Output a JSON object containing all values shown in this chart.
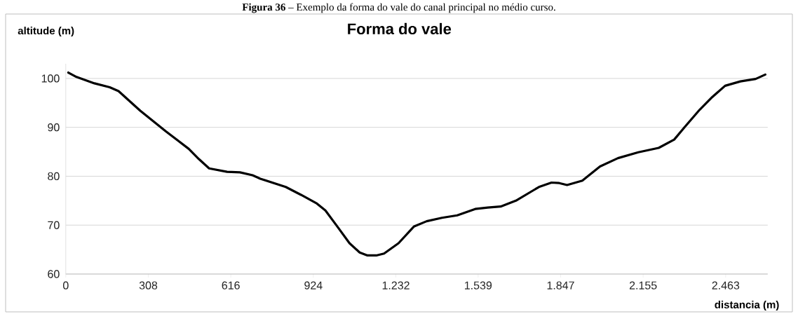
{
  "chart_data": {
    "type": "line",
    "title": "Forma do vale",
    "xlabel": "distancia (m)",
    "ylabel": "altitude (m)",
    "annotations": [
      "**Figura 36** – Exemplo da forma do vale do canal principal no médio curso."
    ],
    "x": [
      9.5,
      40,
      107,
      164,
      197,
      278,
      373,
      459,
      497,
      535,
      602,
      650,
      697,
      726,
      821,
      878,
      935,
      969,
      1011,
      1059,
      1097,
      1126,
      1159,
      1188,
      1242,
      1299,
      1347,
      1404,
      1461,
      1528,
      1575,
      1623,
      1680,
      1766,
      1813,
      1842,
      1871,
      1928,
      1994,
      2061,
      2137,
      2213,
      2271,
      2309,
      2366,
      2413,
      2461,
      2518,
      2575,
      2611
    ],
    "series": [
      {
        "color": "#000000",
        "values": [
          101.2,
          100.3,
          99.0,
          98.2,
          97.4,
          93.4,
          89.2,
          85.6,
          83.5,
          81.6,
          80.9,
          80.8,
          80.2,
          79.5,
          77.8,
          76.2,
          74.5,
          73.0,
          69.9,
          66.3,
          64.4,
          63.8,
          63.8,
          64.2,
          66.3,
          69.7,
          70.8,
          71.5,
          72.0,
          73.3,
          73.6,
          73.8,
          75.0,
          77.8,
          78.7,
          78.6,
          78.2,
          79.1,
          82.0,
          83.7,
          84.9,
          85.8,
          87.5,
          90.0,
          93.6,
          96.2,
          98.5,
          99.4,
          99.9,
          100.8
        ]
      }
    ],
    "xlim": [
      0,
      2620
    ],
    "ylim": [
      60,
      103
    ],
    "xticks": [
      0,
      308,
      616,
      924,
      {
        "value": 1232,
        "label": "1.232"
      },
      {
        "value": 1539,
        "label": "1.539"
      },
      {
        "value": 1847,
        "label": "1.847"
      },
      {
        "value": 2155,
        "label": "2.155"
      },
      {
        "value": 2463,
        "label": "2.463"
      }
    ],
    "yticks": [
      60,
      70,
      80,
      90,
      100
    ],
    "grid": "y",
    "marker": "none",
    "line_style": "solid"
  }
}
